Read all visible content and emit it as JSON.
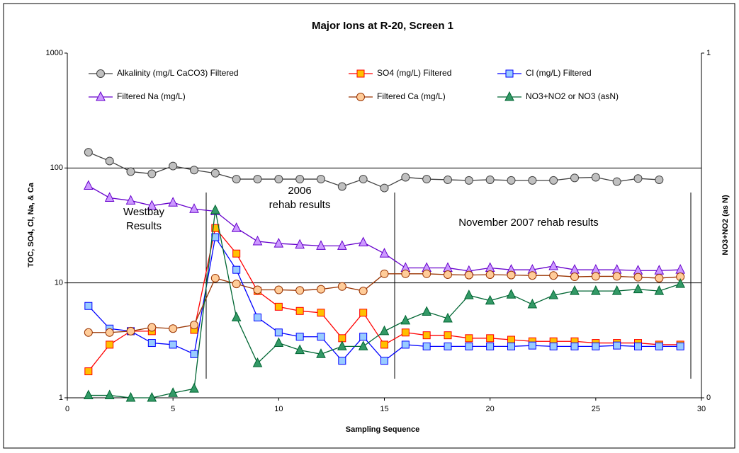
{
  "chart_data": {
    "type": "line",
    "title": "Major Ions at R-20, Screen 1",
    "x_label": "Sampling Sequence",
    "y_label": "TOC, SO4, Cl, Na, & Ca",
    "y2_label": "NO3+NO2 (as N)",
    "x": [
      1,
      2,
      3,
      4,
      5,
      6,
      7,
      8,
      9,
      10,
      11,
      12,
      13,
      14,
      15,
      16,
      17,
      18,
      19,
      20,
      21,
      22,
      23,
      24,
      25,
      26,
      27,
      28,
      29
    ],
    "xlim": [
      0,
      30
    ],
    "xticks": [
      0,
      5,
      10,
      15,
      20,
      25,
      30
    ],
    "ylim": [
      1,
      1000
    ],
    "yticks": [
      1,
      10,
      100,
      1000
    ],
    "log_y": true,
    "y2lim": [
      0,
      1
    ],
    "y2ticks": [
      0,
      1
    ],
    "grid": true,
    "series": [
      {
        "name": "Alkalinity (mg/L CaCO3) Filtered",
        "color": "#404040",
        "marker": "circle",
        "marker_fill": "#c0c0c0",
        "values": [
          137,
          115,
          93,
          89,
          104,
          96,
          90,
          80,
          80,
          80,
          80,
          80,
          69,
          80,
          67,
          83,
          80,
          79,
          78,
          79,
          78,
          78,
          78,
          82,
          83,
          76,
          81,
          79,
          null
        ]
      },
      {
        "name": "SO4 (mg/L) Filtered",
        "color": "#ff0000",
        "marker": "square",
        "marker_fill": "#ffc000",
        "values": [
          1.7,
          2.9,
          3.8,
          3.8,
          null,
          3.9,
          30,
          18,
          8.5,
          6.2,
          5.7,
          5.5,
          3.3,
          5.5,
          2.9,
          3.7,
          3.5,
          3.5,
          3.3,
          3.3,
          3.2,
          3.1,
          3.1,
          3.1,
          3.0,
          3.0,
          3.0,
          2.9,
          2.9
        ]
      },
      {
        "name": "Cl  (mg/L) Filtered",
        "color": "#0000ff",
        "marker": "square",
        "marker_fill": "#99ccff",
        "values": [
          6.3,
          4.0,
          3.8,
          3.0,
          2.9,
          2.4,
          25,
          13,
          5.0,
          3.7,
          3.4,
          3.4,
          2.1,
          3.4,
          2.1,
          2.9,
          2.8,
          2.8,
          2.8,
          2.8,
          2.8,
          2.85,
          2.8,
          2.8,
          2.8,
          2.85,
          2.8,
          2.8,
          2.8
        ]
      },
      {
        "name": "Filtered Na (mg/L)",
        "color": "#6600cc",
        "marker": "triangle",
        "marker_fill": "#cc99ff",
        "values": [
          70,
          55,
          52,
          47,
          50,
          44,
          42,
          30,
          23,
          22,
          21.5,
          21,
          21,
          22.5,
          18,
          13.5,
          13.5,
          13.5,
          12.7,
          13.5,
          13,
          13,
          14,
          13,
          13,
          13,
          12.8,
          12.8,
          13
        ]
      },
      {
        "name": "Filtered Ca (mg/L)",
        "color": "#993300",
        "marker": "circle",
        "marker_fill": "#ffcc99",
        "values": [
          3.7,
          3.7,
          3.8,
          4.1,
          4.0,
          4.3,
          11,
          9.8,
          8.7,
          8.7,
          8.6,
          8.8,
          9.3,
          8.5,
          12,
          12,
          12,
          11.8,
          11.7,
          11.8,
          11.7,
          11.6,
          11.6,
          11.3,
          11.4,
          11.4,
          11.2,
          11,
          11.3
        ]
      },
      {
        "name": "NO3+NO2 or NO3 (asN)",
        "color": "#006633",
        "marker": "triangle",
        "marker_fill": "#339966",
        "values": [
          1.05,
          1.05,
          1.0,
          1.0,
          1.1,
          1.2,
          43,
          5.0,
          2.0,
          3.0,
          2.6,
          2.4,
          2.8,
          2.8,
          3.8,
          4.7,
          5.6,
          4.9,
          7.8,
          7.0,
          7.9,
          6.5,
          7.8,
          8.5,
          8.5,
          8.5,
          8.8,
          8.5,
          9.8
        ]
      }
    ],
    "annotations": [
      {
        "lines": [
          "Westbay",
          "Results"
        ]
      },
      {
        "lines": [
          "2006",
          "rehab results"
        ]
      },
      {
        "lines": [
          "November 2007 rehab results"
        ]
      }
    ]
  }
}
